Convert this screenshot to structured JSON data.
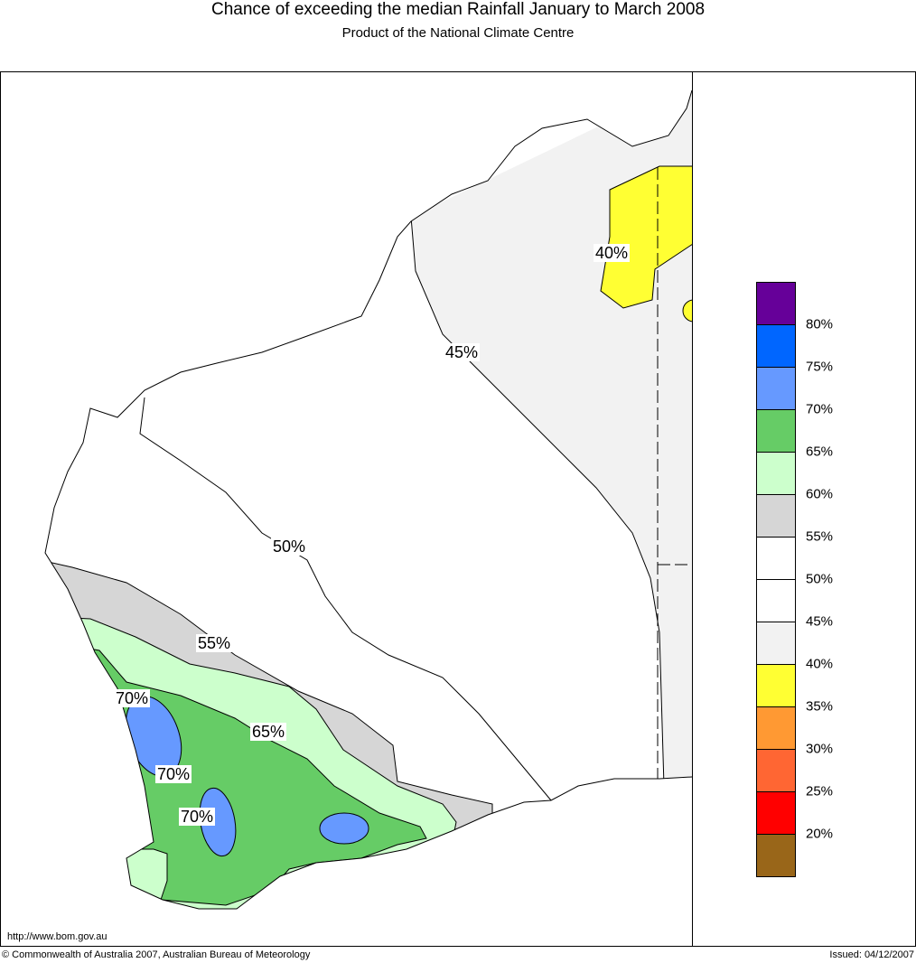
{
  "title": "Chance of exceeding the median Rainfall January to March 2008",
  "subtitle": "Product of the National Climate Centre",
  "map_labels": {
    "l40": "40%",
    "l45": "45%",
    "l50": "50%",
    "l55": "55%",
    "l65": "65%",
    "l70a": "70%",
    "l70b": "70%",
    "l70c": "70%"
  },
  "legend": {
    "colors": [
      "#660099",
      "#0066ff",
      "#6699ff",
      "#66cc66",
      "#ccffcc",
      "#d6d6d6",
      "#ffffff",
      "#ffffff",
      "#f2f2f2",
      "#ffff33",
      "#ff9933",
      "#ff6633",
      "#ff0000",
      "#996619"
    ],
    "labels": [
      "80%",
      "75%",
      "70%",
      "65%",
      "60%",
      "55%",
      "50%",
      "45%",
      "40%",
      "35%",
      "30%",
      "25%",
      "20%"
    ]
  },
  "footer": {
    "url": "http://www.bom.gov.au",
    "copyright": "© Commonwealth of Australia 2007, Australian Bureau of Meteorology",
    "issued": "Issued: 04/12/2007"
  }
}
